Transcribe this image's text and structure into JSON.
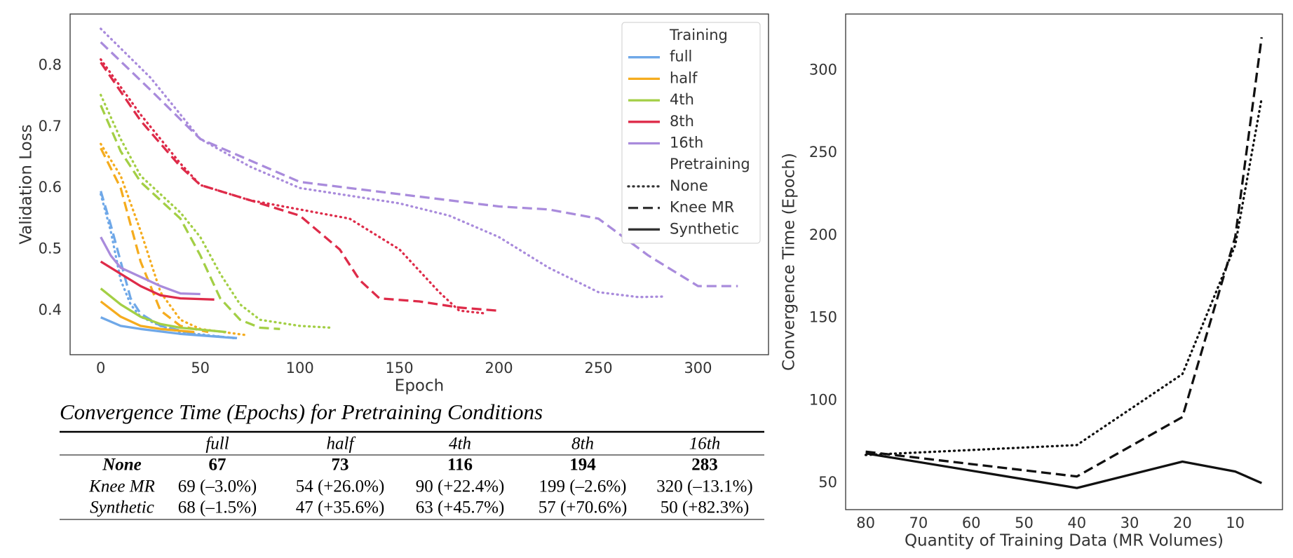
{
  "chart_data": [
    {
      "type": "line",
      "xlabel": "Epoch",
      "ylabel": "Validation Loss",
      "xlim": [
        -15.4,
        335.4
      ],
      "ylim": [
        0.328,
        0.884
      ],
      "xticks": [
        0,
        50,
        100,
        150,
        200,
        250,
        300
      ],
      "yticks": [
        0.4,
        0.5,
        0.6,
        0.7,
        0.8
      ],
      "grid": false,
      "legend": {
        "loc": "upper right",
        "groups": [
          {
            "title": "Training",
            "entries": [
              {
                "label": "full",
                "color": "#6fa8e8",
                "dash": "solid"
              },
              {
                "label": "half",
                "color": "#f5ac1e",
                "dash": "solid"
              },
              {
                "label": "4th",
                "color": "#a3cf45",
                "dash": "solid"
              },
              {
                "label": "8th",
                "color": "#de2b49",
                "dash": "solid"
              },
              {
                "label": "16th",
                "color": "#a98bdc",
                "dash": "solid"
              }
            ]
          },
          {
            "title": "Pretraining",
            "entries": [
              {
                "label": "None",
                "color": "#333333",
                "dash": "dotted"
              },
              {
                "label": "Knee MR",
                "color": "#333333",
                "dash": "dashed"
              },
              {
                "label": "Synthetic",
                "color": "#333333",
                "dash": "solid"
              }
            ]
          }
        ]
      },
      "series": [
        {
          "color": "#6fa8e8",
          "dash": "dotted",
          "x": [
            0,
            5,
            10,
            15,
            20,
            30,
            40,
            67
          ],
          "values": [
            0.59,
            0.53,
            0.45,
            0.41,
            0.39,
            0.375,
            0.365,
            0.355
          ]
        },
        {
          "color": "#6fa8e8",
          "dash": "dashed",
          "x": [
            0,
            5,
            10,
            15,
            20,
            30,
            50,
            69
          ],
          "values": [
            0.595,
            0.54,
            0.48,
            0.42,
            0.395,
            0.375,
            0.36,
            0.355
          ]
        },
        {
          "color": "#6fa8e8",
          "dash": "solid",
          "x": [
            0,
            10,
            20,
            40,
            68
          ],
          "values": [
            0.389,
            0.375,
            0.37,
            0.362,
            0.355
          ]
        },
        {
          "color": "#f5ac1e",
          "dash": "dotted",
          "x": [
            0,
            10,
            20,
            30,
            40,
            50,
            73
          ],
          "values": [
            0.672,
            0.62,
            0.53,
            0.43,
            0.385,
            0.37,
            0.36
          ]
        },
        {
          "color": "#f5ac1e",
          "dash": "dashed",
          "x": [
            0,
            10,
            20,
            30,
            40,
            54
          ],
          "values": [
            0.665,
            0.6,
            0.48,
            0.4,
            0.375,
            0.365
          ]
        },
        {
          "color": "#f5ac1e",
          "dash": "solid",
          "x": [
            0,
            10,
            20,
            30,
            47
          ],
          "values": [
            0.415,
            0.39,
            0.375,
            0.37,
            0.365
          ]
        },
        {
          "color": "#a3cf45",
          "dash": "dotted",
          "x": [
            0,
            10,
            20,
            30,
            40,
            50,
            60,
            70,
            80,
            100,
            116
          ],
          "values": [
            0.752,
            0.68,
            0.62,
            0.59,
            0.56,
            0.52,
            0.46,
            0.41,
            0.385,
            0.375,
            0.372
          ]
        },
        {
          "color": "#a3cf45",
          "dash": "dashed",
          "x": [
            0,
            10,
            20,
            30,
            40,
            50,
            60,
            70,
            80,
            90
          ],
          "values": [
            0.735,
            0.66,
            0.61,
            0.58,
            0.55,
            0.49,
            0.42,
            0.385,
            0.372,
            0.37
          ]
        },
        {
          "color": "#a3cf45",
          "dash": "solid",
          "x": [
            0,
            10,
            20,
            30,
            40,
            63
          ],
          "values": [
            0.436,
            0.41,
            0.39,
            0.378,
            0.372,
            0.365
          ]
        },
        {
          "color": "#de2b49",
          "dash": "dotted",
          "x": [
            0,
            20,
            40,
            50,
            75,
            100,
            125,
            150,
            170,
            180,
            194
          ],
          "values": [
            0.81,
            0.72,
            0.64,
            0.605,
            0.58,
            0.565,
            0.55,
            0.5,
            0.43,
            0.4,
            0.395
          ]
        },
        {
          "color": "#de2b49",
          "dash": "dashed",
          "x": [
            0,
            20,
            40,
            50,
            75,
            100,
            120,
            130,
            140,
            160,
            180,
            199
          ],
          "values": [
            0.805,
            0.71,
            0.635,
            0.605,
            0.58,
            0.555,
            0.5,
            0.45,
            0.42,
            0.415,
            0.405,
            0.4
          ]
        },
        {
          "color": "#de2b49",
          "dash": "solid",
          "x": [
            0,
            10,
            20,
            30,
            40,
            57
          ],
          "values": [
            0.48,
            0.46,
            0.44,
            0.425,
            0.42,
            0.418
          ]
        },
        {
          "color": "#a98bdc",
          "dash": "dotted",
          "x": [
            0,
            25,
            50,
            75,
            100,
            150,
            175,
            200,
            225,
            250,
            270,
            283
          ],
          "values": [
            0.86,
            0.78,
            0.68,
            0.635,
            0.6,
            0.575,
            0.555,
            0.52,
            0.47,
            0.43,
            0.422,
            0.423
          ]
        },
        {
          "color": "#a98bdc",
          "dash": "dashed",
          "x": [
            0,
            25,
            50,
            75,
            100,
            150,
            175,
            200,
            225,
            250,
            275,
            300,
            320
          ],
          "values": [
            0.838,
            0.76,
            0.68,
            0.645,
            0.61,
            0.59,
            0.58,
            0.57,
            0.565,
            0.55,
            0.49,
            0.44,
            0.44
          ]
        },
        {
          "color": "#a98bdc",
          "dash": "solid",
          "x": [
            0,
            5,
            10,
            20,
            30,
            40,
            50
          ],
          "values": [
            0.52,
            0.49,
            0.47,
            0.455,
            0.44,
            0.428,
            0.427
          ]
        }
      ]
    },
    {
      "type": "line",
      "xlabel": "Quantity of Training Data (MR Volumes)",
      "ylabel": "Convergence Time (Epoch)",
      "xlim": [
        83.8,
        1.05
      ],
      "ylim": [
        33.9,
        334.1
      ],
      "xticks": [
        80,
        70,
        60,
        50,
        40,
        30,
        20,
        10
      ],
      "yticks": [
        50,
        100,
        150,
        200,
        250,
        300
      ],
      "grid": false,
      "series": [
        {
          "color": "#111111",
          "dash": "dotted",
          "x": [
            80,
            40,
            20,
            10,
            5
          ],
          "values": [
            67,
            73,
            116,
            194,
            283
          ]
        },
        {
          "color": "#111111",
          "dash": "dashed",
          "x": [
            80,
            40,
            20,
            10,
            5
          ],
          "values": [
            69,
            54,
            90,
            199,
            320
          ]
        },
        {
          "color": "#111111",
          "dash": "solid",
          "x": [
            80,
            40,
            20,
            10,
            5
          ],
          "values": [
            68,
            47,
            63,
            57,
            50
          ]
        }
      ]
    }
  ],
  "table": {
    "title": "Convergence Time (Epochs) for Pretraining Conditions",
    "columns": [
      "full",
      "half",
      "4th",
      "8th",
      "16th"
    ],
    "rows": [
      {
        "label": "None",
        "bold": true,
        "cells": [
          67,
          73,
          116,
          194,
          283
        ]
      },
      {
        "label": "Knee MR",
        "bold": false,
        "cells": [
          "69 (–3.0%)",
          "54 (+26.0%)",
          "90 (+22.4%)",
          "199 (–2.6%)",
          "320 (–13.1%)"
        ]
      },
      {
        "label": "Synthetic",
        "bold": false,
        "cells": [
          "68 (–1.5%)",
          "47 (+35.6%)",
          "63 (+45.7%)",
          "57 (+70.6%)",
          "50 (+82.3%)"
        ]
      }
    ]
  }
}
